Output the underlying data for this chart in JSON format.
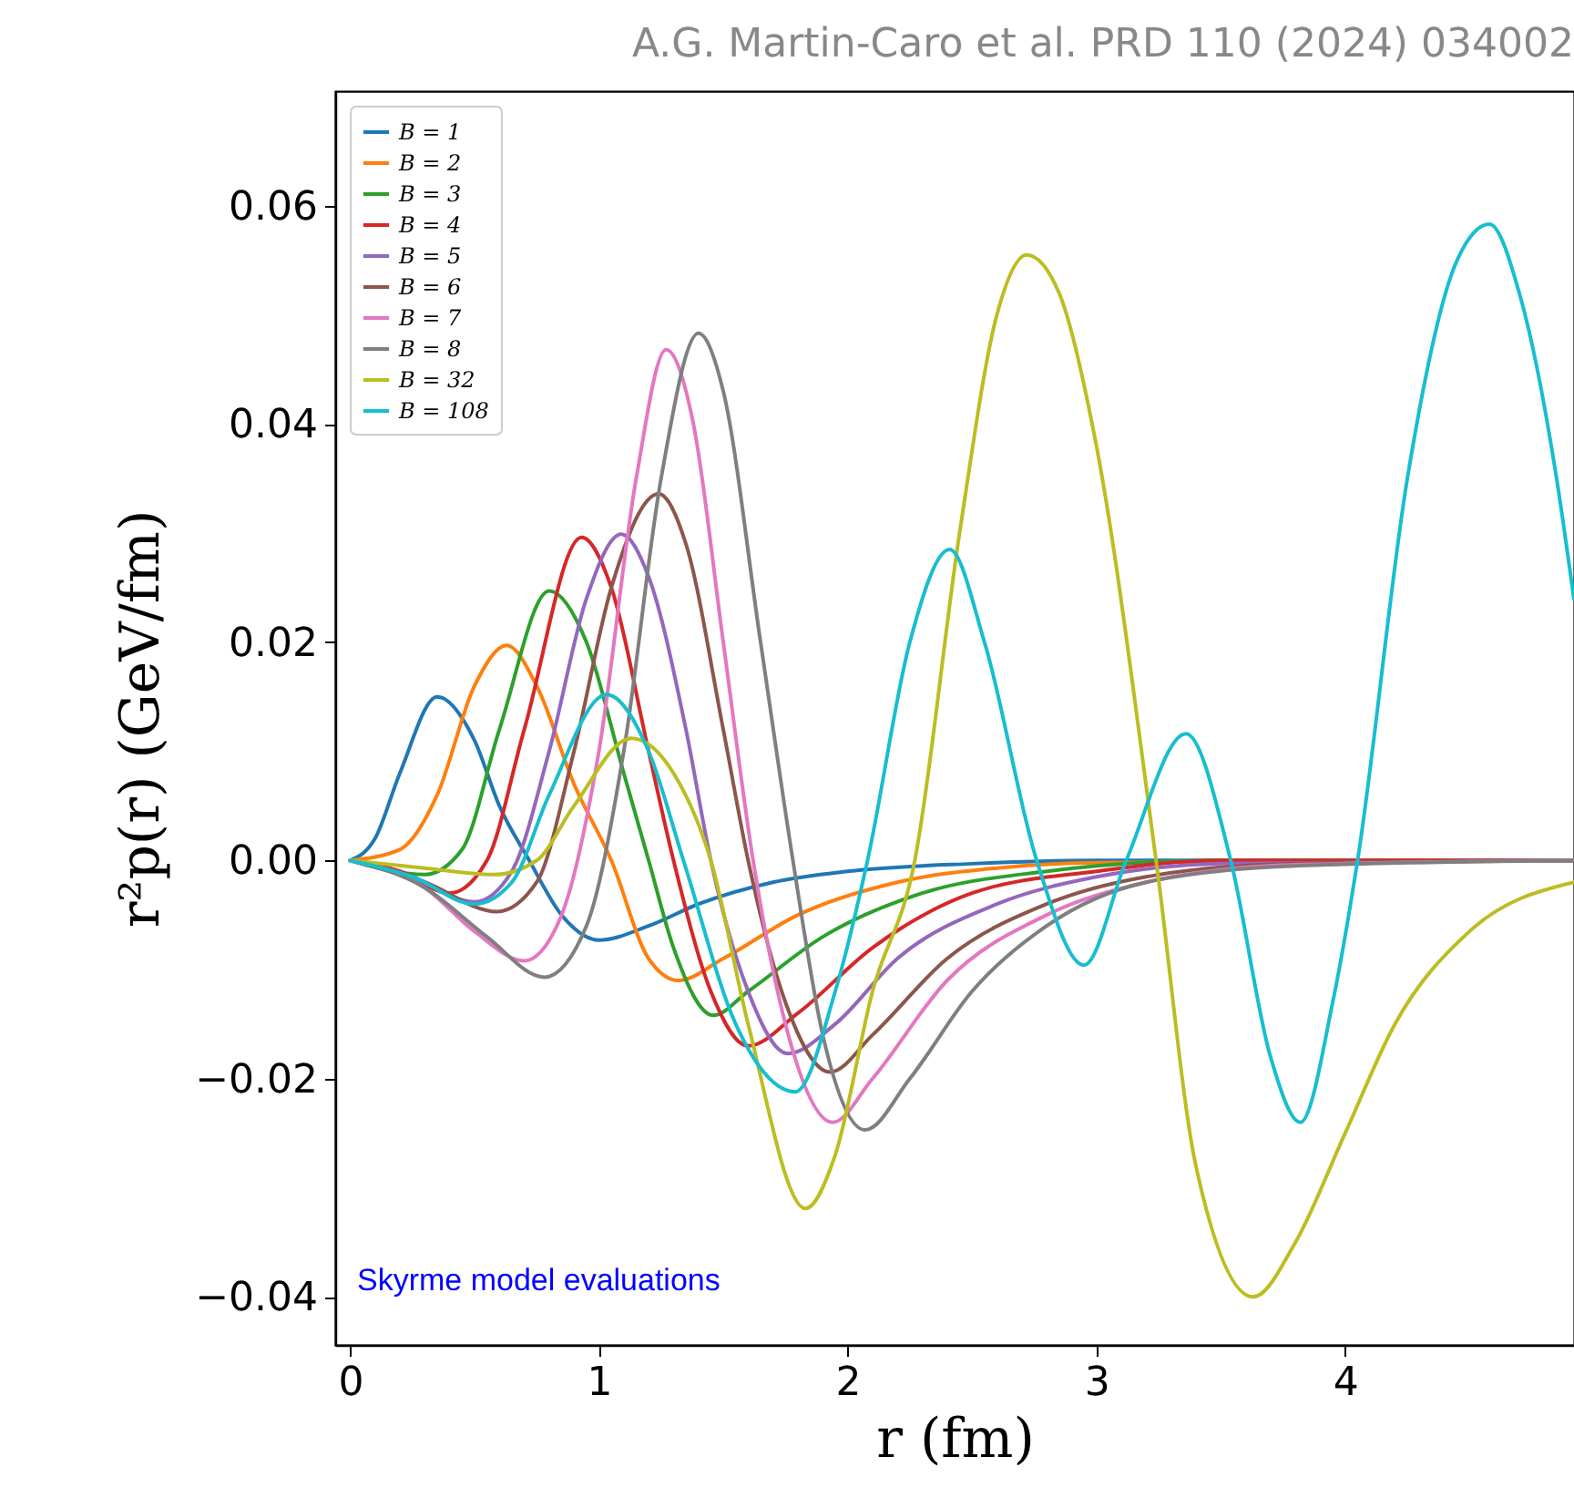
{
  "chart_data": {
    "type": "line",
    "title": "A.G. Martin-Caro et al. PRD 110 (2024) 034002",
    "xlabel": "r (fm)",
    "ylabel": "r²p(r) (GeV/fm)",
    "annotations": [
      "Skyrme model evaluations"
    ],
    "xlim": [
      -0.06,
      4.92
    ],
    "ylim": [
      -0.0444,
      0.0705
    ],
    "xticks": [
      0,
      1,
      2,
      3,
      4
    ],
    "yticks": [
      {
        "value": -0.04,
        "label": "−0.04"
      },
      {
        "value": -0.02,
        "label": "−0.02"
      },
      {
        "value": 0,
        "label": "0.00"
      },
      {
        "value": 0.02,
        "label": "0.02"
      },
      {
        "value": 0.04,
        "label": "0.04"
      },
      {
        "value": 0.06,
        "label": "0.06"
      }
    ],
    "legend": "top left",
    "grid": false,
    "marker": "none",
    "line_style": "solid",
    "series": [
      {
        "name": "B = 1",
        "color": "#1f77b4",
        "x": [
          0,
          0.1,
          0.2,
          0.35,
          0.5,
          0.6,
          0.72,
          0.85,
          1.0,
          1.2,
          1.4,
          1.7,
          2.0,
          2.5,
          3,
          4.92
        ],
        "values": [
          0,
          0.002,
          0.008,
          0.015,
          0.011,
          0.005,
          0,
          -0.005,
          -0.0073,
          -0.006,
          -0.004,
          -0.002,
          -0.001,
          -0.0003,
          0,
          0
        ]
      },
      {
        "name": "B = 2",
        "color": "#ff7f0e",
        "x": [
          0,
          0.2,
          0.35,
          0.5,
          0.63,
          0.75,
          0.9,
          1.05,
          1.2,
          1.32,
          1.5,
          1.8,
          2.2,
          2.6,
          3,
          4.92
        ],
        "values": [
          0,
          0.001,
          0.006,
          0.016,
          0.0197,
          0.016,
          0.007,
          0,
          -0.009,
          -0.011,
          -0.009,
          -0.005,
          -0.002,
          -0.0007,
          -0.0002,
          0
        ]
      },
      {
        "name": "B = 3",
        "color": "#2ca02c",
        "x": [
          0,
          0.3,
          0.45,
          0.6,
          0.8,
          0.95,
          1.1,
          1.2,
          1.3,
          1.46,
          1.6,
          1.9,
          2.3,
          2.8,
          3.5,
          4.92
        ],
        "values": [
          0,
          -0.0013,
          0.001,
          0.012,
          0.0247,
          0.02,
          0.008,
          0,
          -0.008,
          -0.0142,
          -0.012,
          -0.007,
          -0.003,
          -0.001,
          0,
          0
        ]
      },
      {
        "name": "B = 4",
        "color": "#d62728",
        "x": [
          0,
          0.2,
          0.4,
          0.55,
          0.7,
          0.93,
          1.05,
          1.2,
          1.3,
          1.45,
          1.6,
          1.8,
          2.1,
          2.5,
          3,
          3.5,
          4.92
        ],
        "values": [
          0,
          -0.001,
          -0.003,
          0,
          0.012,
          0.0296,
          0.025,
          0.01,
          0,
          -0.012,
          -0.017,
          -0.014,
          -0.008,
          -0.003,
          -0.001,
          0,
          0
        ]
      },
      {
        "name": "B = 5",
        "color": "#9467bd",
        "x": [
          0,
          0.25,
          0.5,
          0.65,
          0.8,
          0.95,
          1.09,
          1.2,
          1.35,
          1.45,
          1.6,
          1.76,
          1.95,
          2.2,
          2.6,
          3,
          3.5,
          4.92
        ],
        "values": [
          0,
          -0.0015,
          -0.0038,
          -0.001,
          0.01,
          0.024,
          0.0299,
          0.026,
          0.012,
          0,
          -0.012,
          -0.0177,
          -0.015,
          -0.009,
          -0.004,
          -0.0015,
          -0.0003,
          0
        ]
      },
      {
        "name": "B = 6",
        "color": "#8c564b",
        "x": [
          0,
          0.3,
          0.59,
          0.75,
          0.9,
          1.05,
          1.24,
          1.35,
          1.5,
          1.6,
          1.75,
          1.93,
          2.1,
          2.4,
          2.8,
          3.2,
          3.8,
          4.92
        ],
        "values": [
          0,
          -0.002,
          -0.0047,
          -0.002,
          0.01,
          0.025,
          0.0336,
          0.029,
          0.012,
          0,
          -0.013,
          -0.0194,
          -0.016,
          -0.009,
          -0.004,
          -0.0015,
          -0.0003,
          0
        ]
      },
      {
        "name": "B = 7",
        "color": "#e377c2",
        "x": [
          0,
          0.3,
          0.5,
          0.7,
          0.85,
          1.0,
          1.15,
          1.27,
          1.38,
          1.5,
          1.62,
          1.75,
          1.94,
          2.1,
          2.4,
          2.8,
          3.2,
          3.8,
          4.92
        ],
        "values": [
          0,
          -0.0025,
          -0.0065,
          -0.0092,
          -0.005,
          0.01,
          0.035,
          0.0468,
          0.04,
          0.02,
          0,
          -0.015,
          -0.024,
          -0.02,
          -0.011,
          -0.005,
          -0.002,
          -0.0004,
          0
        ]
      },
      {
        "name": "B = 8",
        "color": "#7f7f7f",
        "x": [
          0,
          0.3,
          0.55,
          0.78,
          0.95,
          1.1,
          1.25,
          1.4,
          1.5,
          1.65,
          1.78,
          1.9,
          2.07,
          2.25,
          2.5,
          2.8,
          3.2,
          3.8,
          4.92
        ],
        "values": [
          0,
          -0.0025,
          -0.007,
          -0.0107,
          -0.006,
          0.01,
          0.035,
          0.0483,
          0.043,
          0.02,
          0,
          -0.016,
          -0.0247,
          -0.02,
          -0.012,
          -0.006,
          -0.002,
          -0.0005,
          0
        ]
      },
      {
        "name": "B = 32",
        "color": "#bcbd22",
        "x": [
          0,
          0.3,
          0.58,
          0.75,
          0.9,
          1.13,
          1.3,
          1.45,
          1.6,
          1.83,
          1.95,
          2.1,
          2.27,
          2.45,
          2.6,
          2.72,
          2.85,
          3.0,
          3.24,
          3.4,
          3.63,
          3.8,
          4.0,
          4.2,
          4.5,
          4.92
        ],
        "values": [
          0,
          -0.0007,
          -0.0013,
          0,
          0.005,
          0.0112,
          0.008,
          0,
          -0.015,
          -0.0319,
          -0.027,
          -0.012,
          0,
          0.03,
          0.05,
          0.0555,
          0.052,
          0.038,
          0,
          -0.028,
          -0.04,
          -0.035,
          -0.025,
          -0.015,
          -0.0065,
          -0.002
        ]
      },
      {
        "name": "B = 108",
        "color": "#17becf",
        "x": [
          0,
          0.25,
          0.5,
          0.65,
          0.8,
          1.03,
          1.2,
          1.34,
          1.55,
          1.79,
          1.95,
          2.08,
          2.25,
          2.41,
          2.55,
          2.76,
          2.95,
          3.12,
          3.36,
          3.54,
          3.7,
          3.82,
          3.95,
          4.05,
          4.25,
          4.45,
          4.58,
          4.7,
          4.85,
          4.92
        ],
        "values": [
          0,
          -0.0015,
          -0.004,
          -0.002,
          0.006,
          0.0152,
          0.01,
          0,
          -0.015,
          -0.0212,
          -0.012,
          0,
          0.02,
          0.0285,
          0.02,
          0,
          -0.0096,
          0,
          0.0116,
          0,
          -0.018,
          -0.024,
          -0.013,
          0,
          0.035,
          0.055,
          0.0583,
          0.052,
          0.035,
          0.0239
        ]
      }
    ]
  }
}
